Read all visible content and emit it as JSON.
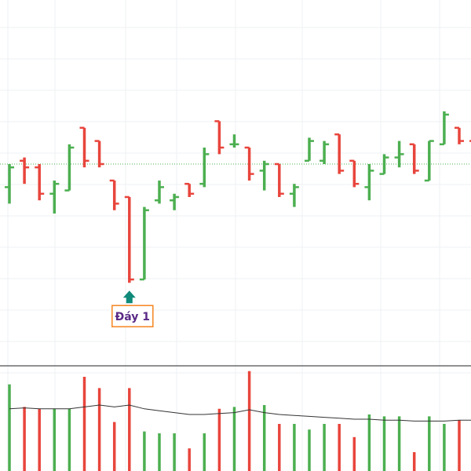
{
  "chart_data": {
    "type": "ohlc",
    "colors": {
      "up": "#4caf50",
      "down": "#e8453c",
      "grid": "#eef0f3",
      "reference_line": "#4caf50",
      "volume_average": "#333333",
      "annotation_border": "#f5841f",
      "annotation_text": "#5b2a86",
      "annotation_arrow": "#0f8a7a",
      "separator": "#222222"
    },
    "price": {
      "ylim": [
        0,
        1
      ],
      "reference_level": 0.55,
      "bars": [
        {
          "o": 0.48,
          "h": 0.55,
          "l": 0.43,
          "c": 0.54
        },
        {
          "o": 0.56,
          "h": 0.57,
          "l": 0.49,
          "c": 0.54
        },
        {
          "o": 0.54,
          "h": 0.55,
          "l": 0.44,
          "c": 0.46
        },
        {
          "o": 0.46,
          "h": 0.5,
          "l": 0.4,
          "c": 0.49
        },
        {
          "o": 0.47,
          "h": 0.61,
          "l": 0.47,
          "c": 0.6
        },
        {
          "o": 0.66,
          "h": 0.66,
          "l": 0.54,
          "c": 0.56
        },
        {
          "o": 0.62,
          "h": 0.62,
          "l": 0.54,
          "c": 0.55
        },
        {
          "o": 0.5,
          "h": 0.5,
          "l": 0.41,
          "c": 0.43
        },
        {
          "o": 0.45,
          "h": 0.45,
          "l": 0.19,
          "c": 0.2
        },
        {
          "o": 0.2,
          "h": 0.42,
          "l": 0.2,
          "c": 0.41
        },
        {
          "o": 0.44,
          "h": 0.5,
          "l": 0.43,
          "c": 0.48
        },
        {
          "o": 0.44,
          "h": 0.46,
          "l": 0.41,
          "c": 0.45
        },
        {
          "o": 0.49,
          "h": 0.49,
          "l": 0.45,
          "c": 0.46
        },
        {
          "o": 0.49,
          "h": 0.6,
          "l": 0.48,
          "c": 0.58
        },
        {
          "o": 0.68,
          "h": 0.68,
          "l": 0.58,
          "c": 0.6
        },
        {
          "o": 0.61,
          "h": 0.64,
          "l": 0.6,
          "c": 0.61
        },
        {
          "o": 0.6,
          "h": 0.6,
          "l": 0.5,
          "c": 0.52
        },
        {
          "o": 0.53,
          "h": 0.56,
          "l": 0.47,
          "c": 0.55
        },
        {
          "o": 0.55,
          "h": 0.55,
          "l": 0.45,
          "c": 0.46
        },
        {
          "o": 0.46,
          "h": 0.49,
          "l": 0.42,
          "c": 0.48
        },
        {
          "o": 0.56,
          "h": 0.63,
          "l": 0.56,
          "c": 0.62
        },
        {
          "o": 0.56,
          "h": 0.62,
          "l": 0.55,
          "c": 0.61
        },
        {
          "o": 0.64,
          "h": 0.64,
          "l": 0.52,
          "c": 0.53
        },
        {
          "o": 0.56,
          "h": 0.56,
          "l": 0.48,
          "c": 0.49
        },
        {
          "o": 0.48,
          "h": 0.55,
          "l": 0.44,
          "c": 0.53
        },
        {
          "o": 0.52,
          "h": 0.58,
          "l": 0.52,
          "c": 0.57
        },
        {
          "o": 0.57,
          "h": 0.62,
          "l": 0.54,
          "c": 0.58
        },
        {
          "o": 0.61,
          "h": 0.61,
          "l": 0.52,
          "c": 0.53
        },
        {
          "o": 0.5,
          "h": 0.62,
          "l": 0.5,
          "c": 0.62
        },
        {
          "o": 0.61,
          "h": 0.71,
          "l": 0.61,
          "c": 0.7
        },
        {
          "o": 0.66,
          "h": 0.66,
          "l": 0.61,
          "c": 0.62
        },
        {
          "o": 0.62,
          "h": 0.68,
          "l": 0.55,
          "c": 0.55
        }
      ],
      "annotation": {
        "label": "Đáy 1",
        "bar_index": 8
      }
    },
    "volume": {
      "ylim": [
        0,
        100
      ],
      "values": [
        92,
        68,
        66,
        66,
        66,
        100,
        88,
        52,
        88,
        42,
        40,
        40,
        24,
        40,
        66,
        68,
        106,
        70,
        50,
        50,
        44,
        50,
        50,
        36,
        60,
        58,
        58,
        20,
        58,
        50,
        54,
        20
      ],
      "average": [
        66,
        67,
        66,
        66,
        66,
        68,
        70,
        68,
        70,
        66,
        64,
        62,
        60,
        60,
        61,
        62,
        65,
        62,
        60,
        59,
        58,
        57,
        56,
        55,
        55,
        54,
        54,
        53,
        53,
        53,
        54,
        54
      ]
    }
  }
}
